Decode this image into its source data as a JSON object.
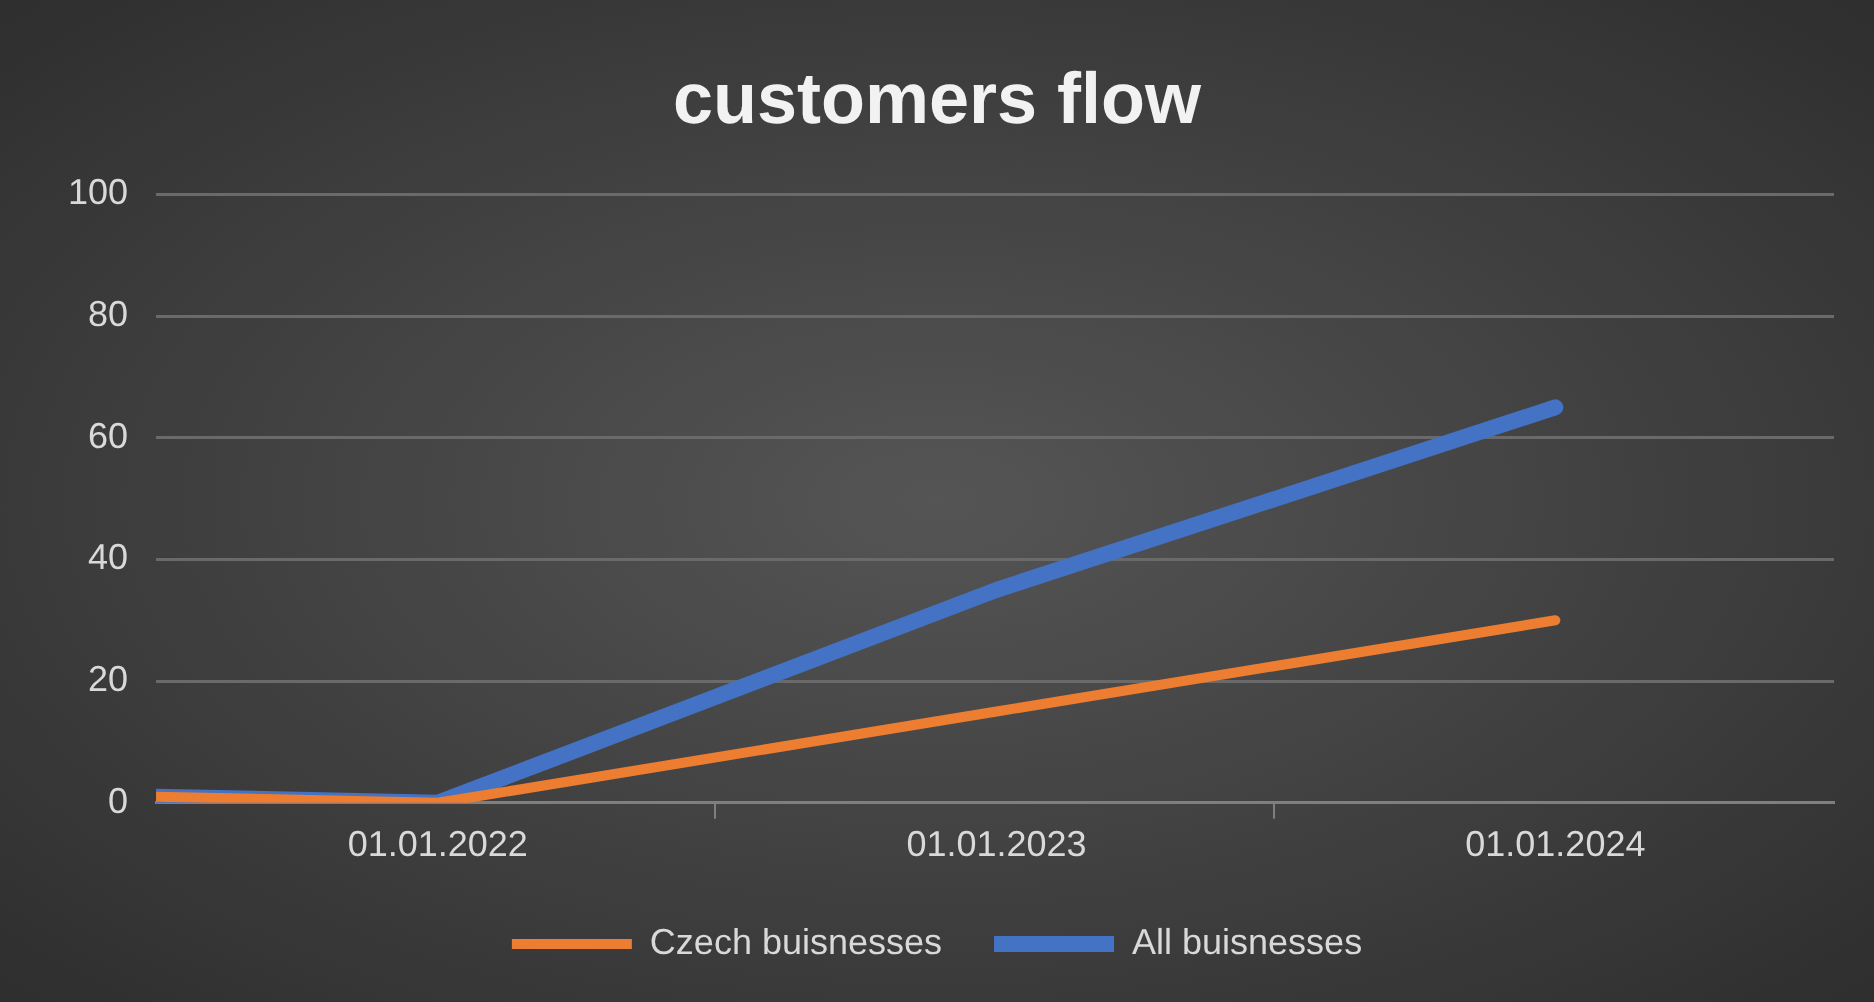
{
  "chart_data": {
    "type": "line",
    "title": "customers flow",
    "x": [
      "2021-07-01",
      "2022-01-01",
      "2023-01-01",
      "2024-01-01"
    ],
    "series": [
      {
        "name": "All buisnesses",
        "color": "#4472c4",
        "values": [
          1,
          0,
          35,
          65
        ]
      },
      {
        "name": "Czech buisnesses",
        "color": "#ed7d31",
        "values": [
          1,
          0,
          15,
          30
        ]
      }
    ],
    "xlim": [
      "2021-07-01",
      "2024-07-01"
    ],
    "xticks": [
      {
        "value": "2022-01-01",
        "label": "01.01.2022"
      },
      {
        "value": "2022-07-01",
        "label": null
      },
      {
        "value": "2023-01-01",
        "label": "01.01.2023"
      },
      {
        "value": "2023-07-01",
        "label": null
      },
      {
        "value": "2024-01-01",
        "label": "01.01.2024"
      }
    ],
    "ylim": [
      0,
      100
    ],
    "yticks": [
      0,
      20,
      40,
      60,
      80,
      100
    ],
    "grid": "y",
    "legend": "bottom",
    "marker": "none",
    "line_style": "solid"
  }
}
